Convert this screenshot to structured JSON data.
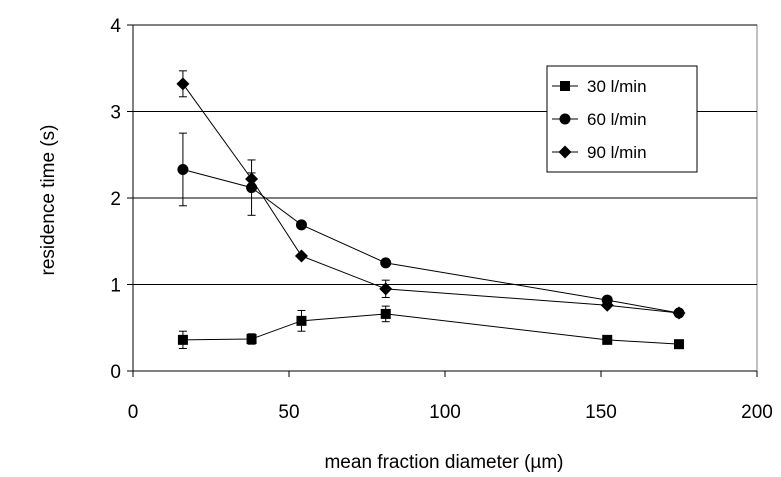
{
  "chart_data": {
    "type": "line",
    "xlabel": "mean fraction diameter (µm)",
    "ylabel": "residence time (s)",
    "xlim": [
      0,
      200
    ],
    "ylim": [
      0,
      4
    ],
    "xticks": [
      0,
      50,
      100,
      150,
      200
    ],
    "yticks": [
      0,
      1,
      2,
      3,
      4
    ],
    "xtick_labels": [
      "0",
      "50",
      "100",
      "150",
      "200"
    ],
    "ytick_labels": [
      "0",
      "1",
      "2",
      "3",
      "4"
    ],
    "grid": "horizontal",
    "legend_position": "top-right",
    "series": [
      {
        "name": "30 l/min",
        "marker": "square",
        "x": [
          16,
          38,
          54,
          81,
          152,
          175
        ],
        "y": [
          0.36,
          0.37,
          0.58,
          0.66,
          0.36,
          0.31
        ],
        "err": [
          0.1,
          0.06,
          0.12,
          0.09,
          0,
          0
        ]
      },
      {
        "name": "60 l/min",
        "marker": "circle",
        "x": [
          16,
          38,
          54,
          81,
          152,
          175
        ],
        "y": [
          2.33,
          2.12,
          1.69,
          1.25,
          0.82,
          0.67
        ],
        "err": [
          0.42,
          0.32,
          0,
          0,
          0,
          0
        ]
      },
      {
        "name": "90 l/min",
        "marker": "diamond",
        "x": [
          16,
          38,
          54,
          81,
          152,
          175
        ],
        "y": [
          3.32,
          2.22,
          1.33,
          0.95,
          0.76,
          0.67
        ],
        "err": [
          0.15,
          0.07,
          0,
          0.1,
          0,
          0
        ]
      }
    ]
  }
}
